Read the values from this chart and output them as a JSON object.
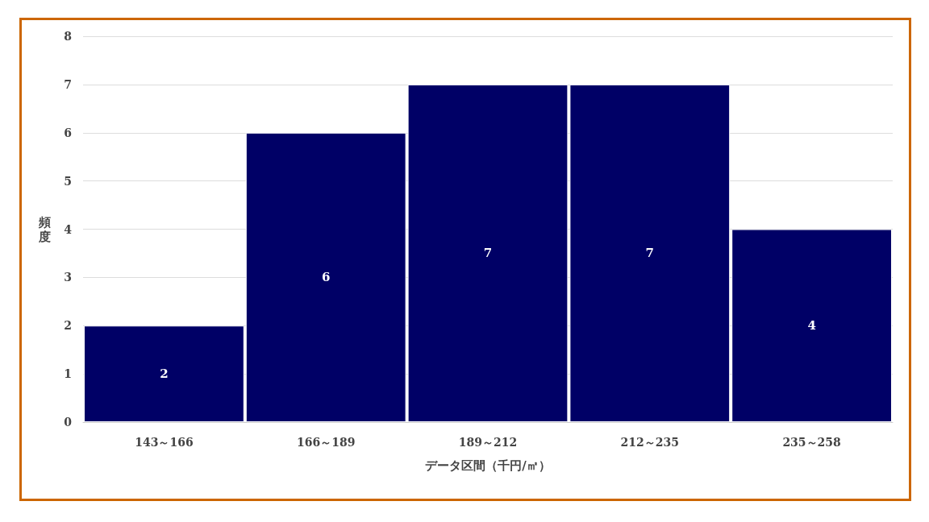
{
  "chart_data": {
    "type": "bar",
    "xlabel": "データ区間（千円/㎡）",
    "ylabel": "頻度",
    "categories": [
      "143～166",
      "166～189",
      "189～212",
      "212～235",
      "235～258"
    ],
    "values": [
      2,
      6,
      7,
      7,
      4
    ],
    "color": "#000066",
    "ylim": [
      0,
      8
    ],
    "yticks": [
      0,
      1,
      2,
      3,
      4,
      5,
      6,
      7,
      8
    ],
    "grid": "y",
    "data_labels": true
  }
}
